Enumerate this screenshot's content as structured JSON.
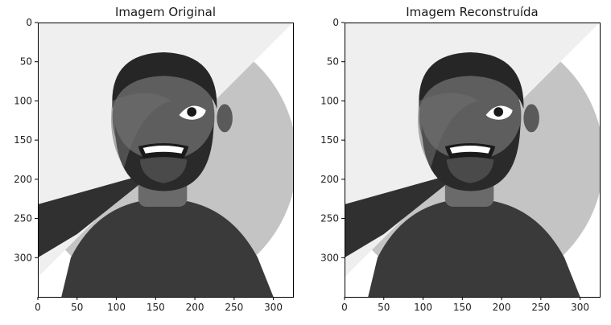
{
  "chart_data": [
    {
      "type": "image",
      "title": "Imagem Original",
      "xlim": [
        0,
        325
      ],
      "ylim": [
        350,
        0
      ],
      "xticks": [
        "0",
        "50",
        "100",
        "150",
        "200",
        "250",
        "300"
      ],
      "yticks": [
        "0",
        "50",
        "100",
        "150",
        "200",
        "250",
        "300"
      ],
      "xtick_values": [
        0,
        50,
        100,
        150,
        200,
        250,
        300
      ],
      "ytick_values": [
        0,
        50,
        100,
        150,
        200,
        250,
        300
      ],
      "image": "grayscale portrait photo of a bearded man, diagonally overlaid with a flat cartoon avatar (circle background, shirt, neck, beard, eye, teeth)"
    },
    {
      "type": "image",
      "title": "Imagem Reconstruída",
      "xlim": [
        0,
        325
      ],
      "ylim": [
        350,
        0
      ],
      "xticks": [
        "0",
        "50",
        "100",
        "150",
        "200",
        "250",
        "300"
      ],
      "yticks": [
        "0",
        "50",
        "100",
        "150",
        "200",
        "250",
        "300"
      ],
      "xtick_values": [
        0,
        50,
        100,
        150,
        200,
        250,
        300
      ],
      "ytick_values": [
        0,
        50,
        100,
        150,
        200,
        250,
        300
      ],
      "image": "reconstructed grayscale version of the same portrait and cartoon avatar overlay"
    }
  ]
}
